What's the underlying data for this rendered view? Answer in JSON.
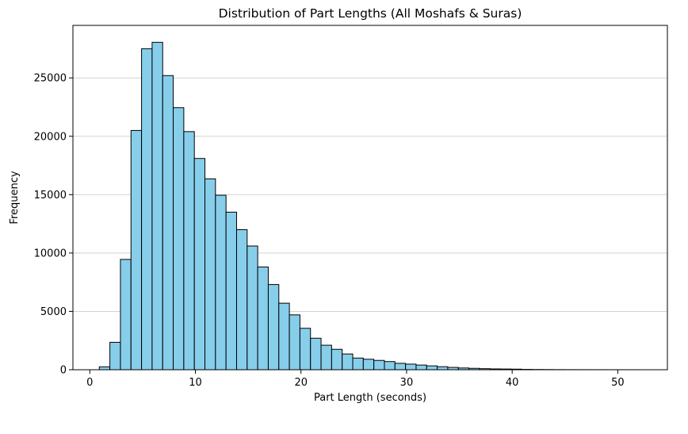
{
  "chart_data": {
    "type": "bar",
    "title": "Distribution of Part Lengths (All Moshafs & Suras)",
    "xlabel": "Part Length (seconds)",
    "ylabel": "Frequency",
    "xlim": [
      -1.6,
      54.7
    ],
    "ylim": [
      0,
      29500
    ],
    "xticks": [
      0,
      10,
      20,
      30,
      40,
      50
    ],
    "yticks": [
      0,
      5000,
      10000,
      15000,
      20000,
      25000
    ],
    "grid": "y",
    "bar_color": "#87ceeb",
    "edge_color": "#000000",
    "bin_width": 1.0,
    "bin_edges_start": 0.9,
    "values": [
      250,
      2350,
      9450,
      20500,
      27500,
      28050,
      25200,
      22450,
      20400,
      18100,
      16350,
      14950,
      13500,
      12000,
      10600,
      8800,
      7300,
      5700,
      4700,
      3550,
      2700,
      2100,
      1750,
      1350,
      1000,
      900,
      800,
      700,
      550,
      480,
      400,
      330,
      260,
      200,
      150,
      120,
      90,
      70,
      60,
      50,
      30,
      20,
      15,
      10,
      8,
      6,
      5,
      4,
      3,
      2,
      1
    ]
  }
}
